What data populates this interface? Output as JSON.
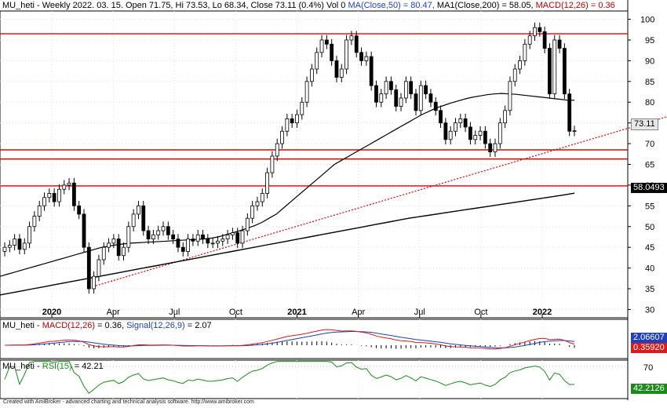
{
  "header": {
    "symbol": "MU_heti",
    "info": " - Weekly 2022. 03. 15. Open 71.75, Hi 73.53, Lo 68.34, Close 73.11 (0.4%) Vol 0 ",
    "ma50": "MA(Close,50) = 80.47, ",
    "ma200": "MA1(Close,200) = 58.05, ",
    "macd": "MACD(12,26) = 0.36"
  },
  "macd_header": {
    "symbol": "MU_heti",
    "macd": "MACD(12,26)",
    "macd_val": " = 0.36, ",
    "signal": "Signal(12,26,9)",
    "signal_val": " = 2.07"
  },
  "rsi_header": {
    "symbol": "MU_heti",
    "rsi": "RSI(15)",
    "rsi_val": " = 42.21"
  },
  "tags": {
    "price": "73.11",
    "ma200": "58.0493",
    "signal": "2.06607",
    "macd": "0.35920",
    "rsi": "42.2126"
  },
  "credit": "Created with AmiBroker - advanced charting and technical analysis software. http://www.amibroker.com",
  "colors": {
    "up": "#ffffff",
    "down": "#000000",
    "hline": "#e00000",
    "trend": "#e00000",
    "ma50": "#000000",
    "ma200": "#000000",
    "macd": "#1f3fbf",
    "signal": "#d81b1b",
    "rsi": "#1a8a1a"
  },
  "chart_data": {
    "type": "candlestick",
    "interval": "weekly",
    "ylim": [
      28,
      102
    ],
    "yticks": [
      30,
      35,
      40,
      45,
      50,
      55,
      60,
      65,
      70,
      75,
      80,
      85,
      90,
      95,
      100
    ],
    "xticks": [
      {
        "label": "2020",
        "bold": true,
        "date": "2020-01"
      },
      {
        "label": "Apr",
        "bold": false,
        "date": "2020-04"
      },
      {
        "label": "Jul",
        "bold": false,
        "date": "2020-07"
      },
      {
        "label": "Oct",
        "bold": false,
        "date": "2020-10"
      },
      {
        "label": "2021",
        "bold": true,
        "date": "2021-01"
      },
      {
        "label": "Apr",
        "bold": false,
        "date": "2021-04"
      },
      {
        "label": "Jul",
        "bold": false,
        "date": "2021-07"
      },
      {
        "label": "Oct",
        "bold": false,
        "date": "2021-10"
      },
      {
        "label": "2022",
        "bold": true,
        "date": "2022-01"
      }
    ],
    "horizontal_lines": [
      96.5,
      68.5,
      66.3,
      59.8
    ],
    "trendline": {
      "from": {
        "date": "2020-03",
        "value": 35.5
      },
      "to": {
        "date": "2022-05",
        "value": 76.5
      }
    },
    "closes": [
      45,
      45.5,
      47,
      44.5,
      46,
      50,
      52.5,
      55,
      57,
      58,
      56,
      59,
      60,
      60.5,
      55,
      53,
      45,
      35,
      38,
      42,
      45,
      46,
      47,
      43,
      45,
      50,
      53,
      55,
      49,
      47,
      48,
      49,
      50,
      48,
      47,
      45,
      44,
      47,
      46.5,
      48,
      47,
      46,
      46,
      46.5,
      47,
      48,
      48.5,
      46,
      49,
      52,
      55,
      56,
      58,
      63,
      67,
      70,
      73,
      76,
      75,
      77,
      80,
      85,
      88,
      92,
      95,
      94,
      90,
      86,
      88,
      95,
      96,
      92,
      90,
      91,
      84,
      80,
      82,
      85,
      83,
      79,
      81,
      85,
      82,
      78,
      84,
      82,
      80,
      78,
      75,
      71,
      73,
      75,
      76,
      74,
      71,
      72,
      73,
      70,
      68,
      70,
      75,
      78,
      85,
      88,
      90,
      94,
      96,
      98,
      97,
      93,
      82,
      95,
      93,
      82,
      73,
      73.11
    ],
    "ma50": [
      38,
      38.5,
      39,
      39.5,
      40,
      40.5,
      41,
      41.5,
      42,
      42.5,
      43,
      43.5,
      44,
      44.5,
      45,
      45.3,
      45.6,
      45.8,
      46,
      46.1,
      46.2,
      46.3,
      46.4,
      46.5,
      46.6,
      46.7,
      46.8,
      46.9,
      47,
      47.2,
      47.5,
      48,
      48.5,
      49,
      49.6,
      50.2,
      51,
      52,
      53,
      54.5,
      56,
      57.5,
      59,
      60.5,
      62,
      63.5,
      65,
      66,
      67,
      68,
      69,
      70,
      71,
      72,
      73,
      74,
      75,
      76,
      77,
      77.8,
      78.6,
      79.2,
      79.8,
      80.3,
      80.8,
      81.2,
      81.5,
      81.8,
      82,
      82.1,
      82,
      81.9,
      81.7,
      81.5,
      81.3,
      81.1,
      80.9,
      80.7,
      80.5,
      80.47
    ],
    "ma200": [
      33.5,
      34,
      34.5,
      35,
      35.5,
      36,
      36.5,
      37,
      37.5,
      38,
      38.5,
      39,
      39.5,
      40,
      40.5,
      41,
      41.5,
      42,
      42.5,
      43,
      43.5,
      44,
      44.5,
      45,
      45.5,
      46,
      46.5,
      47,
      47.5,
      48,
      48.5,
      49,
      49.5,
      50,
      50.5,
      51,
      51.5,
      52,
      52.4,
      52.8,
      53.2,
      53.6,
      54,
      54.4,
      54.8,
      55.2,
      55.6,
      56,
      56.4,
      56.8,
      57.2,
      57.6,
      58.05
    ]
  },
  "rsi_data": {
    "level_label": "70",
    "ylim": [
      20,
      80
    ],
    "last": 42.21
  },
  "macd_data": {
    "macd_last": 0.36,
    "signal_last": 2.07
  }
}
